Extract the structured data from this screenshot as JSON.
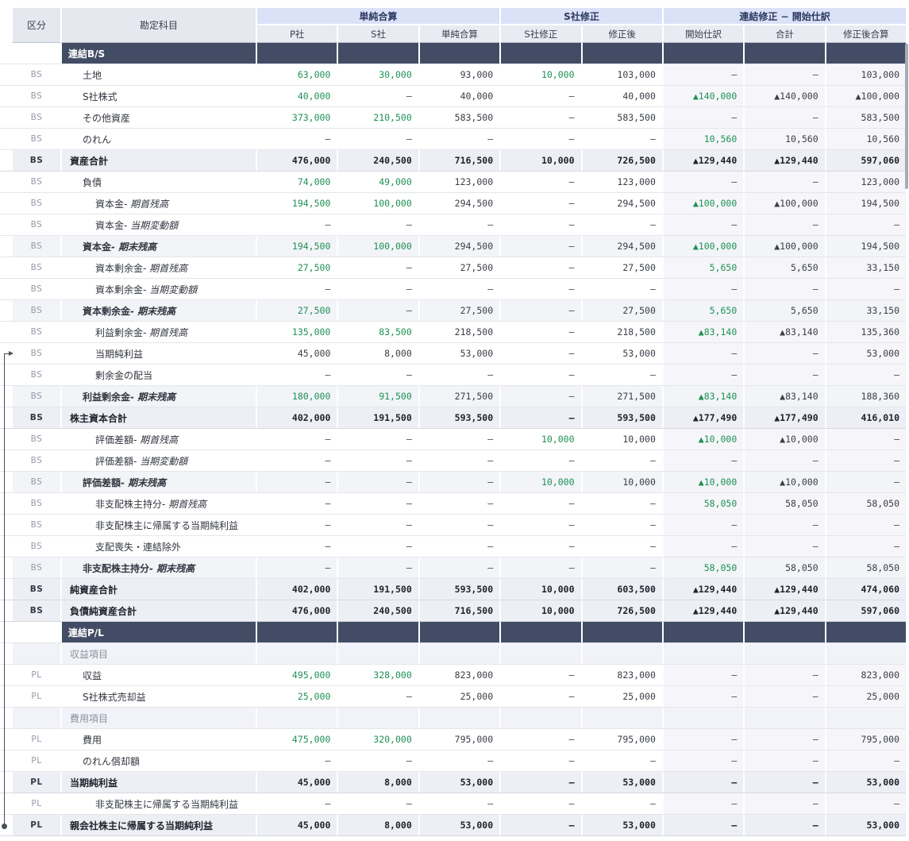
{
  "colors": {
    "green": "#1e9155",
    "section_bg": "#424d65",
    "group_bg": "#dbe1f7",
    "colhead_bg": "#e9ebf3",
    "corner_bg": "#e6e8ef",
    "total_bg": "#edeff5",
    "subtotal_bg": "#f2f4f8",
    "tint_bg": "#f6f6fa",
    "text": "#32363f",
    "muted": "#959aa8",
    "border": "#e4e6ec",
    "connector": "#4a4f5a"
  },
  "table": {
    "corner": {
      "kubun": "区分",
      "kamoku": "勘定科目"
    },
    "groups": [
      {
        "label": "単純合算",
        "span": 3
      },
      {
        "label": "S社修正",
        "span": 2
      },
      {
        "label": "連結修正 − 開始仕訳",
        "span": 3
      }
    ],
    "columns": [
      "P社",
      "S社",
      "単純合算",
      "S社修正",
      "修正後",
      "開始仕訳",
      "合計",
      "修正後合算"
    ],
    "rows": [
      {
        "type": "section",
        "label": "連結B/S"
      },
      {
        "type": "item",
        "kubun": "BS",
        "label": "土地",
        "indent": 1,
        "values": [
          "63,000",
          "30,000",
          "93,000",
          "10,000",
          "103,000",
          "–",
          "–",
          "103,000"
        ]
      },
      {
        "type": "item",
        "kubun": "BS",
        "label": "S社株式",
        "indent": 1,
        "values": [
          "40,000",
          "–",
          "40,000",
          "–",
          "40,000",
          "▲140,000",
          "▲140,000",
          "▲100,000"
        ]
      },
      {
        "type": "item",
        "kubun": "BS",
        "label": "その他資産",
        "indent": 1,
        "values": [
          "373,000",
          "210,500",
          "583,500",
          "–",
          "583,500",
          "–",
          "–",
          "583,500"
        ]
      },
      {
        "type": "item",
        "kubun": "BS",
        "label": "のれん",
        "indent": 1,
        "values": [
          "–",
          "–",
          "–",
          "–",
          "–",
          "10,560",
          "10,560",
          "10,560"
        ]
      },
      {
        "type": "total",
        "kubun": "BS",
        "label": "資産合計",
        "indent": 0,
        "values": [
          "476,000",
          "240,500",
          "716,500",
          "10,000",
          "726,500",
          "▲129,440",
          "▲129,440",
          "597,060"
        ]
      },
      {
        "type": "item",
        "kubun": "BS",
        "label": "負債",
        "indent": 1,
        "values": [
          "74,000",
          "49,000",
          "123,000",
          "–",
          "123,000",
          "–",
          "–",
          "123,000"
        ]
      },
      {
        "type": "item",
        "kubun": "BS",
        "label": "資本金",
        "suffix": "期首残高",
        "indent": 2,
        "values": [
          "194,500",
          "100,000",
          "294,500",
          "–",
          "294,500",
          "▲100,000",
          "▲100,000",
          "194,500"
        ]
      },
      {
        "type": "item",
        "kubun": "BS",
        "label": "資本金",
        "suffix": "当期変動額",
        "indent": 2,
        "values": [
          "–",
          "–",
          "–",
          "–",
          "–",
          "–",
          "–",
          "–"
        ]
      },
      {
        "type": "subtotal",
        "kubun": "BS",
        "label": "資本金",
        "suffix": "期末残高",
        "indent": 1,
        "values": [
          "194,500",
          "100,000",
          "294,500",
          "–",
          "294,500",
          "▲100,000",
          "▲100,000",
          "194,500"
        ]
      },
      {
        "type": "item",
        "kubun": "BS",
        "label": "資本剰余金",
        "suffix": "期首残高",
        "indent": 2,
        "values": [
          "27,500",
          "–",
          "27,500",
          "–",
          "27,500",
          "5,650",
          "5,650",
          "33,150"
        ]
      },
      {
        "type": "item",
        "kubun": "BS",
        "label": "資本剰余金",
        "suffix": "当期変動額",
        "indent": 2,
        "values": [
          "–",
          "–",
          "–",
          "–",
          "–",
          "–",
          "–",
          "–"
        ]
      },
      {
        "type": "subtotal",
        "kubun": "BS",
        "label": "資本剰余金",
        "suffix": "期末残高",
        "indent": 1,
        "values": [
          "27,500",
          "–",
          "27,500",
          "–",
          "27,500",
          "5,650",
          "5,650",
          "33,150"
        ]
      },
      {
        "type": "item",
        "kubun": "BS",
        "label": "利益剰余金",
        "suffix": "期首残高",
        "indent": 2,
        "values": [
          "135,000",
          "83,500",
          "218,500",
          "–",
          "218,500",
          "▲83,140",
          "▲83,140",
          "135,360"
        ]
      },
      {
        "type": "item",
        "kubun": "BS",
        "label": "当期純利益",
        "indent": 2,
        "marker": "arrow",
        "green": [],
        "values": [
          "45,000",
          "8,000",
          "53,000",
          "–",
          "53,000",
          "–",
          "–",
          "53,000"
        ]
      },
      {
        "type": "item",
        "kubun": "BS",
        "label": "剰余金の配当",
        "indent": 2,
        "values": [
          "–",
          "–",
          "–",
          "–",
          "–",
          "–",
          "–",
          "–"
        ]
      },
      {
        "type": "subtotal",
        "kubun": "BS",
        "label": "利益剰余金",
        "suffix": "期末残高",
        "indent": 1,
        "values": [
          "180,000",
          "91,500",
          "271,500",
          "–",
          "271,500",
          "▲83,140",
          "▲83,140",
          "188,360"
        ]
      },
      {
        "type": "total",
        "kubun": "BS",
        "label": "株主資本合計",
        "indent": 0,
        "values": [
          "402,000",
          "191,500",
          "593,500",
          "–",
          "593,500",
          "▲177,490",
          "▲177,490",
          "416,010"
        ]
      },
      {
        "type": "item",
        "kubun": "BS",
        "label": "評価差額",
        "suffix": "期首残高",
        "indent": 2,
        "values": [
          "–",
          "–",
          "–",
          "10,000",
          "10,000",
          "▲10,000",
          "▲10,000",
          "–"
        ]
      },
      {
        "type": "item",
        "kubun": "BS",
        "label": "評価差額",
        "suffix": "当期変動額",
        "indent": 2,
        "values": [
          "–",
          "–",
          "–",
          "–",
          "–",
          "–",
          "–",
          "–"
        ]
      },
      {
        "type": "subtotal",
        "kubun": "BS",
        "label": "評価差額",
        "suffix": "期末残高",
        "indent": 1,
        "values": [
          "–",
          "–",
          "–",
          "10,000",
          "10,000",
          "▲10,000",
          "▲10,000",
          "–"
        ]
      },
      {
        "type": "item",
        "kubun": "BS",
        "label": "非支配株主持分",
        "suffix": "期首残高",
        "indent": 2,
        "values": [
          "–",
          "–",
          "–",
          "–",
          "–",
          "58,050",
          "58,050",
          "58,050"
        ]
      },
      {
        "type": "item",
        "kubun": "BS",
        "label": "非支配株主に帰属する当期純利益",
        "indent": 2,
        "values": [
          "–",
          "–",
          "–",
          "–",
          "–",
          "–",
          "–",
          "–"
        ]
      },
      {
        "type": "item",
        "kubun": "BS",
        "label": "支配喪失・連結除外",
        "indent": 2,
        "values": [
          "–",
          "–",
          "–",
          "–",
          "–",
          "–",
          "–",
          "–"
        ]
      },
      {
        "type": "subtotal",
        "kubun": "BS",
        "label": "非支配株主持分",
        "suffix": "期末残高",
        "indent": 1,
        "values": [
          "–",
          "–",
          "–",
          "–",
          "–",
          "58,050",
          "58,050",
          "58,050"
        ]
      },
      {
        "type": "total",
        "kubun": "BS",
        "label": "純資産合計",
        "indent": 0,
        "values": [
          "402,000",
          "191,500",
          "593,500",
          "10,000",
          "603,500",
          "▲129,440",
          "▲129,440",
          "474,060"
        ]
      },
      {
        "type": "total",
        "kubun": "BS",
        "label": "負債純資産合計",
        "indent": 0,
        "values": [
          "476,000",
          "240,500",
          "716,500",
          "10,000",
          "726,500",
          "▲129,440",
          "▲129,440",
          "597,060"
        ]
      },
      {
        "type": "section",
        "label": "連結P/L"
      },
      {
        "type": "subheader",
        "label": "収益項目"
      },
      {
        "type": "item",
        "kubun": "PL",
        "label": "収益",
        "indent": 1,
        "values": [
          "495,000",
          "328,000",
          "823,000",
          "–",
          "823,000",
          "–",
          "–",
          "823,000"
        ]
      },
      {
        "type": "item",
        "kubun": "PL",
        "label": "S社株式売却益",
        "indent": 1,
        "values": [
          "25,000",
          "–",
          "25,000",
          "–",
          "25,000",
          "–",
          "–",
          "25,000"
        ]
      },
      {
        "type": "subheader",
        "label": "費用項目"
      },
      {
        "type": "item",
        "kubun": "PL",
        "label": "費用",
        "indent": 1,
        "values": [
          "475,000",
          "320,000",
          "795,000",
          "–",
          "795,000",
          "–",
          "–",
          "795,000"
        ]
      },
      {
        "type": "item",
        "kubun": "PL",
        "label": "のれん償却額",
        "indent": 1,
        "values": [
          "–",
          "–",
          "–",
          "–",
          "–",
          "–",
          "–",
          "–"
        ]
      },
      {
        "type": "total",
        "kubun": "PL",
        "label": "当期純利益",
        "indent": 0,
        "values": [
          "45,000",
          "8,000",
          "53,000",
          "–",
          "53,000",
          "–",
          "–",
          "53,000"
        ]
      },
      {
        "type": "item",
        "kubun": "PL",
        "label": "非支配株主に帰属する当期純利益",
        "indent": 2,
        "values": [
          "–",
          "–",
          "–",
          "–",
          "–",
          "–",
          "–",
          "–"
        ]
      },
      {
        "type": "total",
        "kubun": "PL",
        "label": "親会社株主に帰属する当期純利益",
        "indent": 0,
        "marker": "dot",
        "values": [
          "45,000",
          "8,000",
          "53,000",
          "–",
          "53,000",
          "–",
          "–",
          "53,000"
        ]
      }
    ]
  }
}
